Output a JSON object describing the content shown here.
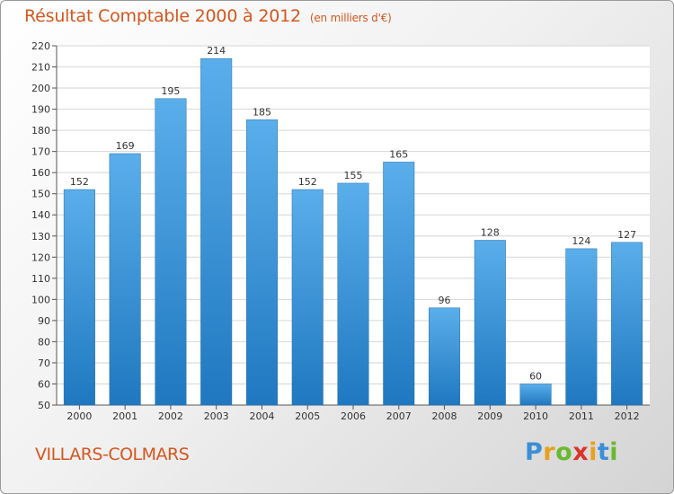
{
  "title": "Résultat Comptable 2000 à 2012",
  "subtitle": "(en milliers d'€)",
  "commune": "VILLARS-COLMARS",
  "logo": {
    "text": "Proxiti",
    "letter_colors": [
      "#3a8fd6",
      "#e8a020",
      "#6ab82e",
      "#d9342b",
      "#e8a020",
      "#3a8fd6",
      "#6ab82e"
    ]
  },
  "colors": {
    "title": "#d5561d",
    "bar_top": "#5aaeea",
    "bar_bottom": "#1f78c0",
    "grid": "#d6d6d6"
  },
  "chart_data": {
    "type": "bar",
    "title": "Résultat Comptable 2000 à 2012",
    "subtitle": "(en milliers d'€)",
    "xlabel": "",
    "ylabel": "",
    "categories": [
      "2000",
      "2001",
      "2002",
      "2003",
      "2004",
      "2005",
      "2006",
      "2007",
      "2008",
      "2009",
      "2010",
      "2011",
      "2012"
    ],
    "values": [
      152,
      169,
      195,
      214,
      185,
      152,
      155,
      165,
      96,
      128,
      60,
      124,
      127
    ],
    "ylim": [
      50,
      220
    ],
    "yticks": [
      50,
      60,
      70,
      80,
      90,
      100,
      110,
      120,
      130,
      140,
      150,
      160,
      170,
      180,
      190,
      200,
      210,
      220
    ],
    "grid": true,
    "data_labels": true
  }
}
